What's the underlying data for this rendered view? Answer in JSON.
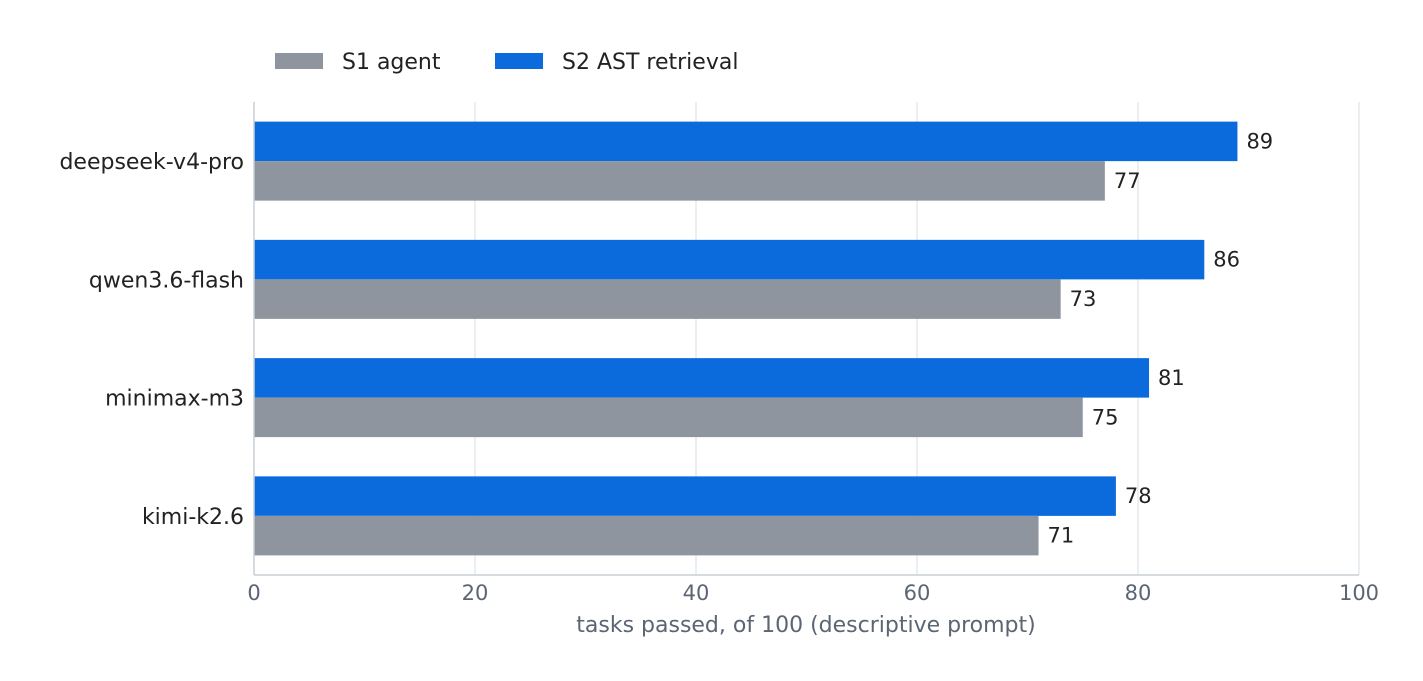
{
  "chart_data": {
    "type": "bar",
    "orientation": "horizontal",
    "categories": [
      "deepseek-v4-pro",
      "qwen3.6-flash",
      "minimax-m3",
      "kimi-k2.6"
    ],
    "series": [
      {
        "name": "S1 agent",
        "color": "#8e959f",
        "values": [
          77,
          73,
          75,
          71
        ]
      },
      {
        "name": "S2 AST retrieval",
        "color": "#0b6bdc",
        "values": [
          89,
          86,
          81,
          78
        ]
      }
    ],
    "xlabel": "tasks passed, of 100 (descriptive prompt)",
    "xlim": [
      0,
      100
    ],
    "xticks": [
      0,
      20,
      40,
      60,
      80,
      100
    ],
    "grid": "vertical",
    "legend": "top-left",
    "data_labels": true
  }
}
